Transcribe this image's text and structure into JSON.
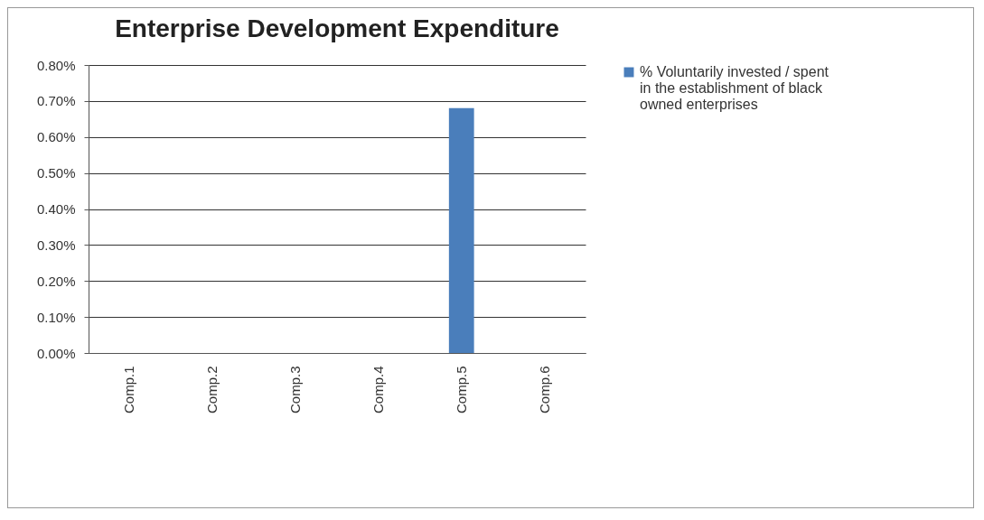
{
  "chart_data": {
    "type": "bar",
    "title": "Enterprise Development Expenditure",
    "categories": [
      "Comp.1",
      "Comp.2",
      "Comp.3",
      "Comp.4",
      "Comp.5",
      "Comp.6"
    ],
    "series": [
      {
        "name": "% Voluntarily invested / spent in the establishment of black owned enterprises",
        "color": "#4a7ebb",
        "values": [
          0,
          0,
          0,
          0,
          0.68,
          0
        ]
      }
    ],
    "ylim": [
      0,
      0.8
    ],
    "yticks": [
      {
        "value": 0,
        "label": "0.00%"
      },
      {
        "value": 0.1,
        "label": "0.10%"
      },
      {
        "value": 0.2,
        "label": "0.20%"
      },
      {
        "value": 0.3,
        "label": "0.30%"
      },
      {
        "value": 0.4,
        "label": "0.40%"
      },
      {
        "value": 0.5,
        "label": "0.50%"
      },
      {
        "value": 0.6,
        "label": "0.60%"
      },
      {
        "value": 0.7,
        "label": "0.70%"
      },
      {
        "value": 0.8,
        "label": "0.80%"
      }
    ],
    "grid": "y",
    "legend": "right"
  }
}
